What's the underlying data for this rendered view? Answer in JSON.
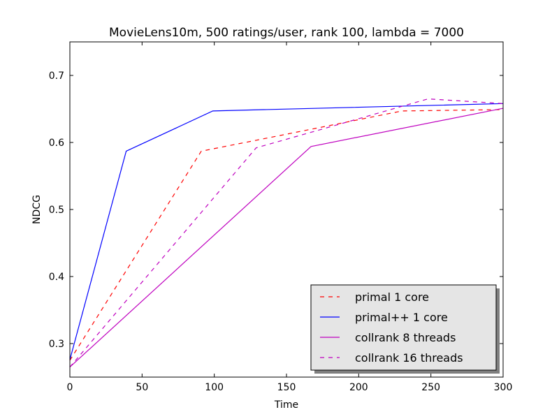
{
  "chart_data": {
    "type": "line",
    "title": "MovieLens10m, 500 ratings/user, rank 100, lambda = 7000",
    "xlabel": "Time",
    "ylabel": "NDCG",
    "xlim": [
      0,
      300
    ],
    "ylim": [
      0.25,
      0.75
    ],
    "xticks": [
      0,
      50,
      100,
      150,
      200,
      250,
      300
    ],
    "yticks": [
      0.3,
      0.4,
      0.5,
      0.6,
      0.7
    ],
    "xtick_labels": [
      "0",
      "50",
      "100",
      "150",
      "200",
      "250",
      "300"
    ],
    "ytick_labels": [
      "0.3",
      "0.4",
      "0.5",
      "0.6",
      "0.7"
    ],
    "grid": false,
    "legend_position": "lower-right",
    "series": [
      {
        "name": "primal 1 core",
        "color": "#ff0000",
        "dash": "dashed",
        "points": [
          [
            0,
            0.275
          ],
          [
            91,
            0.587
          ],
          [
            140,
            0.608
          ],
          [
            230,
            0.647
          ],
          [
            300,
            0.649
          ]
        ]
      },
      {
        "name": "primal++ 1 core",
        "color": "#0000ff",
        "dash": "solid",
        "points": [
          [
            0,
            0.276
          ],
          [
            39,
            0.587
          ],
          [
            99,
            0.647
          ],
          [
            300,
            0.658
          ]
        ]
      },
      {
        "name": "collrank 8 threads",
        "color": "#bf00bf",
        "dash": "solid",
        "points": [
          [
            0,
            0.265
          ],
          [
            167,
            0.594
          ],
          [
            300,
            0.651
          ]
        ]
      },
      {
        "name": "collrank 16 threads",
        "color": "#bf00bf",
        "dash": "dashed",
        "points": [
          [
            0,
            0.265
          ],
          [
            129,
            0.592
          ],
          [
            170,
            0.617
          ],
          [
            248,
            0.665
          ],
          [
            300,
            0.658
          ]
        ]
      }
    ]
  }
}
